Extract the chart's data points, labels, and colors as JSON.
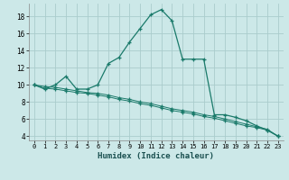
{
  "title": "",
  "xlabel": "Humidex (Indice chaleur)",
  "background_color": "#cce8e8",
  "grid_color": "#aacccc",
  "line_color": "#1a7a6a",
  "xlim": [
    -0.5,
    23.5
  ],
  "ylim": [
    3.5,
    19.5
  ],
  "yticks": [
    4,
    6,
    8,
    10,
    12,
    14,
    16,
    18
  ],
  "xticks": [
    0,
    1,
    2,
    3,
    4,
    5,
    6,
    7,
    8,
    9,
    10,
    11,
    12,
    13,
    14,
    15,
    16,
    17,
    18,
    19,
    20,
    21,
    22,
    23
  ],
  "curve1_x": [
    0,
    1,
    2,
    3,
    4,
    5,
    6,
    7,
    8,
    9,
    10,
    11,
    12,
    13,
    14,
    15,
    16,
    17,
    18,
    19,
    20,
    21,
    22,
    23
  ],
  "curve1_y": [
    10.0,
    9.5,
    10.0,
    11.0,
    9.5,
    9.5,
    10.0,
    12.5,
    13.2,
    15.0,
    16.6,
    18.2,
    18.8,
    17.5,
    13.0,
    13.0,
    13.0,
    6.5,
    6.5,
    6.2,
    5.8,
    5.2,
    4.7,
    4.0
  ],
  "curve2_x": [
    0,
    1,
    2,
    3,
    4,
    5,
    6,
    7,
    8,
    9,
    10,
    11,
    12,
    13,
    14,
    15,
    16,
    17,
    18,
    19,
    20,
    21,
    22,
    23
  ],
  "curve2_y": [
    10.0,
    9.6,
    9.5,
    9.3,
    9.1,
    9.0,
    8.8,
    8.6,
    8.3,
    8.1,
    7.8,
    7.6,
    7.3,
    7.0,
    6.8,
    6.6,
    6.3,
    6.1,
    5.8,
    5.5,
    5.2,
    5.0,
    4.7,
    4.0
  ],
  "curve3_x": [
    0,
    1,
    2,
    3,
    4,
    5,
    6,
    7,
    8,
    9,
    10,
    11,
    12,
    13,
    14,
    15,
    16,
    17,
    18,
    19,
    20,
    21,
    22,
    23
  ],
  "curve3_y": [
    10.0,
    9.8,
    9.7,
    9.5,
    9.3,
    9.1,
    9.0,
    8.8,
    8.5,
    8.3,
    8.0,
    7.8,
    7.5,
    7.2,
    7.0,
    6.8,
    6.5,
    6.3,
    6.0,
    5.7,
    5.4,
    5.1,
    4.8,
    4.0
  ]
}
